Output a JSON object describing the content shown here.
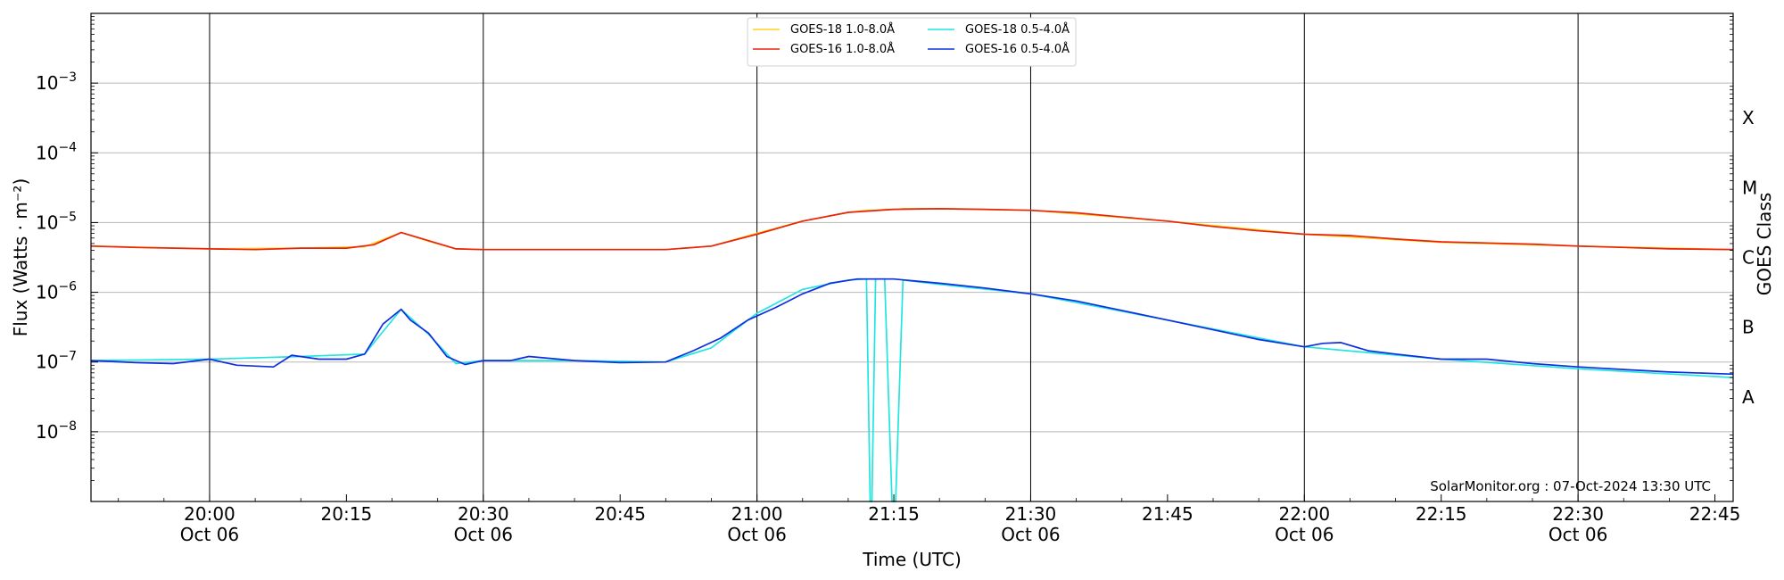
{
  "chart_data": {
    "type": "line",
    "title": "",
    "xlabel": "Time (UTC)",
    "ylabel": "Flux (Watts · m⁻²)",
    "right_axis_label": "GOES Class",
    "y_scale": "log",
    "ylim": [
      1e-09,
      0.01
    ],
    "xlim": [
      "2024-10-06 19:47",
      "2024-10-06 22:47"
    ],
    "y_ticks": [
      {
        "value": 1e-08,
        "base": "10",
        "exp": "−8"
      },
      {
        "value": 1e-07,
        "base": "10",
        "exp": "−7"
      },
      {
        "value": 1e-06,
        "base": "10",
        "exp": "−6"
      },
      {
        "value": 1e-05,
        "base": "10",
        "exp": "−5"
      },
      {
        "value": 0.0001,
        "base": "10",
        "exp": "−4"
      },
      {
        "value": 0.001,
        "base": "10",
        "exp": "−3"
      }
    ],
    "x_ticks": [
      {
        "time": "2024-10-06 20:00",
        "label": "20:00",
        "sublabel": "Oct 06",
        "major": true
      },
      {
        "time": "2024-10-06 20:15",
        "label": "20:15",
        "sublabel": "",
        "major": false
      },
      {
        "time": "2024-10-06 20:30",
        "label": "20:30",
        "sublabel": "Oct 06",
        "major": true
      },
      {
        "time": "2024-10-06 20:45",
        "label": "20:45",
        "sublabel": "",
        "major": false
      },
      {
        "time": "2024-10-06 21:00",
        "label": "21:00",
        "sublabel": "Oct 06",
        "major": true
      },
      {
        "time": "2024-10-06 21:15",
        "label": "21:15",
        "sublabel": "",
        "major": false
      },
      {
        "time": "2024-10-06 21:30",
        "label": "21:30",
        "sublabel": "Oct 06",
        "major": true
      },
      {
        "time": "2024-10-06 21:45",
        "label": "21:45",
        "sublabel": "",
        "major": false
      },
      {
        "time": "2024-10-06 22:00",
        "label": "22:00",
        "sublabel": "Oct 06",
        "major": true
      },
      {
        "time": "2024-10-06 22:15",
        "label": "22:15",
        "sublabel": "",
        "major": false
      },
      {
        "time": "2024-10-06 22:30",
        "label": "22:30",
        "sublabel": "Oct 06",
        "major": true
      },
      {
        "time": "2024-10-06 22:45",
        "label": "22:45",
        "sublabel": "",
        "major": false
      }
    ],
    "goes_classes": [
      {
        "label": "A",
        "low": 1e-08,
        "high": 1e-07
      },
      {
        "label": "B",
        "low": 1e-07,
        "high": 1e-06
      },
      {
        "label": "C",
        "low": 1e-06,
        "high": 1e-05
      },
      {
        "label": "M",
        "low": 1e-05,
        "high": 0.0001
      },
      {
        "label": "X",
        "low": 0.0001,
        "high": 0.001
      }
    ],
    "grid": true,
    "legend_position": "top-center",
    "footer": "SolarMonitor.org : 07-Oct-2024 13:30 UTC",
    "series": [
      {
        "name": "GOES-18 1.0-8.0Å",
        "color": "#ffd21f",
        "x": [
          "2024-10-06 19:47",
          "2024-10-06 20:00",
          "2024-10-06 20:10",
          "2024-10-06 20:17",
          "2024-10-06 20:21",
          "2024-10-06 20:24",
          "2024-10-06 20:27",
          "2024-10-06 20:30",
          "2024-10-06 20:40",
          "2024-10-06 20:50",
          "2024-10-06 20:55",
          "2024-10-06 21:00",
          "2024-10-06 21:05",
          "2024-10-06 21:10",
          "2024-10-06 21:12",
          "2024-10-06 21:12.5",
          "2024-10-06 21:13",
          "2024-10-06 21:14",
          "2024-10-06 21:14.5",
          "2024-10-06 21:15",
          "2024-10-06 21:15.5",
          "2024-10-06 21:16",
          "2024-10-06 21:20",
          "2024-10-06 21:30",
          "2024-10-06 21:45",
          "2024-10-06 22:00",
          "2024-10-06 22:15",
          "2024-10-06 22:30",
          "2024-10-06 22:47"
        ],
        "y": [
          4.6e-06,
          4.2e-06,
          4.3e-06,
          4.5e-06,
          7.2e-06,
          5.4e-06,
          4.2e-06,
          4.1e-06,
          4.1e-06,
          4.1e-06,
          4.6e-06,
          7e-06,
          1.05e-05,
          1.4e-05,
          1.5e-05,
          1.5e-05,
          1.5e-05,
          1.55e-05,
          1.55e-05,
          1.55e-05,
          1.55e-05,
          1.58e-05,
          1.58e-05,
          1.5e-05,
          1.05e-05,
          6.8e-06,
          5.2e-06,
          4.6e-06,
          4.1e-06
        ]
      },
      {
        "name": "GOES-18 0.5-4.0Å",
        "color": "#21e6e0",
        "x": [
          "2024-10-06 19:47",
          "2024-10-06 20:00",
          "2024-10-06 20:10",
          "2024-10-06 20:17",
          "2024-10-06 20:21",
          "2024-10-06 20:24",
          "2024-10-06 20:27",
          "2024-10-06 20:30",
          "2024-10-06 20:40",
          "2024-10-06 20:50",
          "2024-10-06 20:55",
          "2024-10-06 21:00",
          "2024-10-06 21:05",
          "2024-10-06 21:10",
          "2024-10-06 21:12",
          "2024-10-06 21:12.4",
          "2024-10-06 21:12.6",
          "2024-10-06 21:13",
          "2024-10-06 21:14",
          "2024-10-06 21:14.8",
          "2024-10-06 21:15.2",
          "2024-10-06 21:16",
          "2024-10-06 21:20",
          "2024-10-06 21:30",
          "2024-10-06 21:45",
          "2024-10-06 22:00",
          "2024-10-06 22:15",
          "2024-10-06 22:30",
          "2024-10-06 22:47"
        ],
        "y": [
          1.05e-07,
          1.1e-07,
          1.2e-07,
          1.3e-07,
          5.7e-07,
          2.5e-07,
          9.5e-08,
          1.05e-07,
          1.05e-07,
          1e-07,
          1.6e-07,
          5e-07,
          1.1e-06,
          1.5e-06,
          1.55e-06,
          1e-09,
          1e-09,
          1.55e-06,
          1.55e-06,
          1e-09,
          1e-09,
          1.5e-06,
          1.3e-06,
          9.5e-07,
          4e-07,
          1.65e-07,
          1.1e-07,
          8e-08,
          6e-08
        ]
      },
      {
        "name": "GOES-16 1.0-8.0Å",
        "color": "#e8230f",
        "x": [
          "2024-10-06 19:47",
          "2024-10-06 19:52",
          "2024-10-06 20:00",
          "2024-10-06 20:05",
          "2024-10-06 20:10",
          "2024-10-06 20:15",
          "2024-10-06 20:18",
          "2024-10-06 20:21",
          "2024-10-06 20:24",
          "2024-10-06 20:27",
          "2024-10-06 20:30",
          "2024-10-06 20:35",
          "2024-10-06 20:40",
          "2024-10-06 20:50",
          "2024-10-06 20:55",
          "2024-10-06 21:00",
          "2024-10-06 21:05",
          "2024-10-06 21:10",
          "2024-10-06 21:15",
          "2024-10-06 21:20",
          "2024-10-06 21:25",
          "2024-10-06 21:30",
          "2024-10-06 21:35",
          "2024-10-06 21:40",
          "2024-10-06 21:45",
          "2024-10-06 21:50",
          "2024-10-06 21:55",
          "2024-10-06 22:00",
          "2024-10-06 22:05",
          "2024-10-06 22:10",
          "2024-10-06 22:15",
          "2024-10-06 22:20",
          "2024-10-06 22:25",
          "2024-10-06 22:30",
          "2024-10-06 22:35",
          "2024-10-06 22:40",
          "2024-10-06 22:47"
        ],
        "y": [
          4.6e-06,
          4.4e-06,
          4.2e-06,
          4.1e-06,
          4.3e-06,
          4.3e-06,
          4.8e-06,
          7.2e-06,
          5.5e-06,
          4.2e-06,
          4.1e-06,
          4.1e-06,
          4.1e-06,
          4.1e-06,
          4.6e-06,
          6.8e-06,
          1.05e-05,
          1.4e-05,
          1.55e-05,
          1.58e-05,
          1.55e-05,
          1.5e-05,
          1.38e-05,
          1.2e-05,
          1.05e-05,
          8.8e-06,
          7.6e-06,
          6.8e-06,
          6.5e-06,
          5.8e-06,
          5.3e-06,
          5.1e-06,
          4.9e-06,
          4.6e-06,
          4.4e-06,
          4.2e-06,
          4.1e-06
        ]
      },
      {
        "name": "GOES-16 0.5-4.0Å",
        "color": "#0f2ee0",
        "x": [
          "2024-10-06 19:47",
          "2024-10-06 19:52",
          "2024-10-06 19:56",
          "2024-10-06 20:00",
          "2024-10-06 20:03",
          "2024-10-06 20:07",
          "2024-10-06 20:09",
          "2024-10-06 20:12",
          "2024-10-06 20:15",
          "2024-10-06 20:17",
          "2024-10-06 20:19",
          "2024-10-06 20:21",
          "2024-10-06 20:22",
          "2024-10-06 20:24",
          "2024-10-06 20:26",
          "2024-10-06 20:28",
          "2024-10-06 20:30",
          "2024-10-06 20:33",
          "2024-10-06 20:35",
          "2024-10-06 20:40",
          "2024-10-06 20:45",
          "2024-10-06 20:50",
          "2024-10-06 20:53",
          "2024-10-06 20:56",
          "2024-10-06 20:59",
          "2024-10-06 21:02",
          "2024-10-06 21:05",
          "2024-10-06 21:08",
          "2024-10-06 21:11",
          "2024-10-06 21:15",
          "2024-10-06 21:20",
          "2024-10-06 21:25",
          "2024-10-06 21:30",
          "2024-10-06 21:35",
          "2024-10-06 21:40",
          "2024-10-06 21:45",
          "2024-10-06 21:50",
          "2024-10-06 21:55",
          "2024-10-06 22:00",
          "2024-10-06 22:02",
          "2024-10-06 22:04",
          "2024-10-06 22:07",
          "2024-10-06 22:10",
          "2024-10-06 22:15",
          "2024-10-06 22:20",
          "2024-10-06 22:25",
          "2024-10-06 22:30",
          "2024-10-06 22:35",
          "2024-10-06 22:40",
          "2024-10-06 22:47"
        ],
        "y": [
          1.05e-07,
          9.8e-08,
          9.5e-08,
          1.1e-07,
          9e-08,
          8.5e-08,
          1.25e-07,
          1.1e-07,
          1.1e-07,
          1.3e-07,
          3.5e-07,
          5.7e-07,
          4e-07,
          2.6e-07,
          1.2e-07,
          9.2e-08,
          1.05e-07,
          1.05e-07,
          1.2e-07,
          1.05e-07,
          9.8e-08,
          1e-07,
          1.45e-07,
          2.2e-07,
          4e-07,
          6e-07,
          9.5e-07,
          1.35e-06,
          1.55e-06,
          1.55e-06,
          1.35e-06,
          1.15e-06,
          9.5e-07,
          7.5e-07,
          5.5e-07,
          4e-07,
          2.9e-07,
          2.1e-07,
          1.65e-07,
          1.85e-07,
          1.9e-07,
          1.45e-07,
          1.3e-07,
          1.1e-07,
          1.1e-07,
          9.5e-08,
          8.5e-08,
          7.8e-08,
          7.2e-08,
          6.7e-08
        ]
      }
    ]
  }
}
